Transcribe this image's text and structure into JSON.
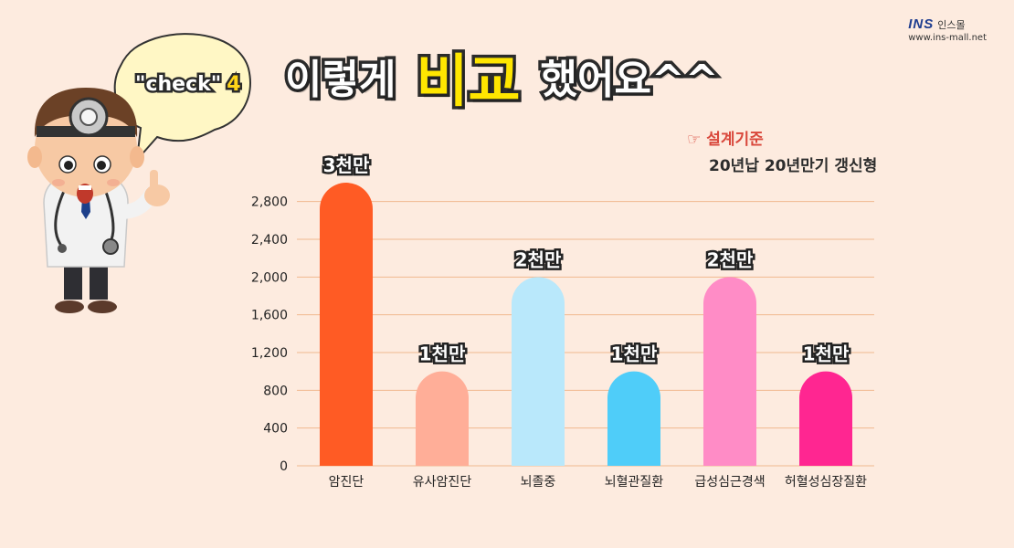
{
  "brand": {
    "logo": "INS",
    "name": "인스몰",
    "url": "www.ins-mall.net"
  },
  "title": {
    "part1": "이렇게",
    "highlight": "비교",
    "part2": "했어요^^"
  },
  "bubble": {
    "text": "\"check\"",
    "number": "4"
  },
  "criteria": {
    "label": "설계기준",
    "detail": "20년납 20년만기 갱신형"
  },
  "colors": {
    "background": "#fdebdf",
    "gridline": "#f0b98f",
    "title_highlight": "#ffe600",
    "criteria_label": "#d9473b"
  },
  "chart_data": {
    "type": "bar",
    "categories": [
      "암진단",
      "유사암진단",
      "뇌졸중",
      "뇌혈관질환",
      "급성심근경색",
      "허혈성심장질환"
    ],
    "values": [
      3000,
      1000,
      2000,
      1000,
      2000,
      1000
    ],
    "data_labels": [
      "3천만",
      "1천만",
      "2천만",
      "1천만",
      "2천만",
      "1천만"
    ],
    "colors": [
      "#ff5b24",
      "#ffae98",
      "#b9e8fb",
      "#4fcdf9",
      "#ff8cc6",
      "#ff2691"
    ],
    "yticks": [
      "0",
      "400",
      "800",
      "1,200",
      "1,600",
      "2,000",
      "2,400",
      "2,800"
    ],
    "ylim": [
      0,
      3000
    ],
    "grid": true,
    "title": "",
    "xlabel": "",
    "ylabel": ""
  }
}
